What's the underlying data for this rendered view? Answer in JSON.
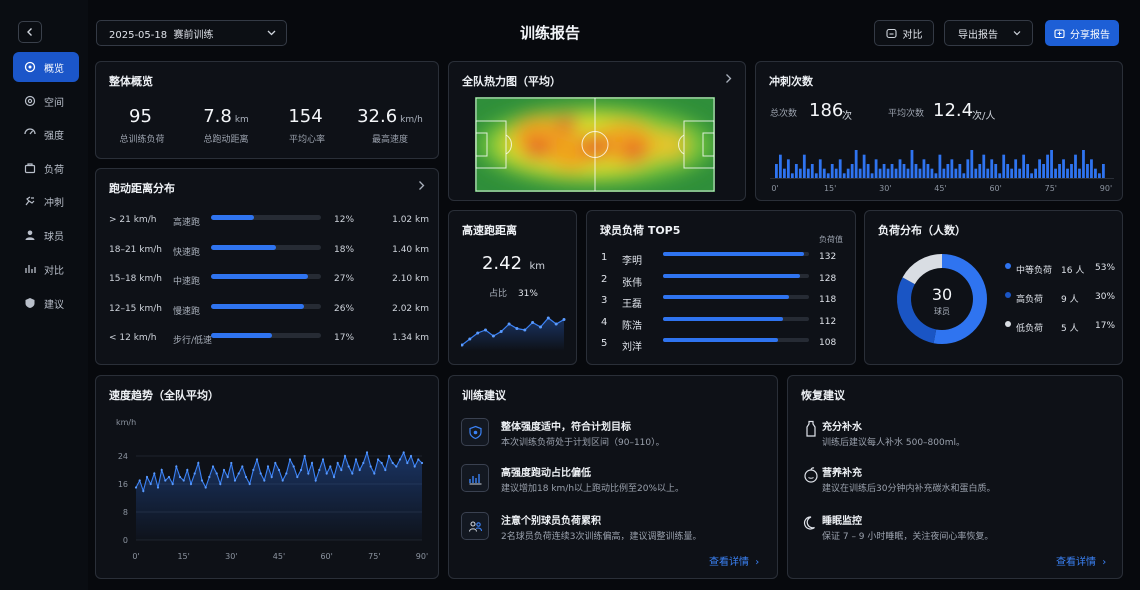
{
  "sidebar": {
    "items": [
      {
        "label": "概览",
        "icon": "overview-icon",
        "active": true
      },
      {
        "label": "空间",
        "icon": "space-icon",
        "active": false
      },
      {
        "label": "强度",
        "icon": "intensity-icon",
        "active": false
      },
      {
        "label": "负荷",
        "icon": "load-icon",
        "active": false
      },
      {
        "label": "冲刺",
        "icon": "sprint-icon",
        "active": false
      },
      {
        "label": "球员",
        "icon": "player-icon",
        "active": false
      },
      {
        "label": "对比",
        "icon": "compare-icon",
        "active": false
      },
      {
        "label": "建议",
        "icon": "suggestion-icon",
        "active": false
      }
    ]
  },
  "header": {
    "session_select": "2025-05-18  赛前训练",
    "title": "训练报告",
    "compare_label": "对比",
    "export_label": "导出报告",
    "share_label": "分享报告"
  },
  "overview": {
    "title": "整体概览",
    "stats": [
      {
        "value": "95",
        "unit": "",
        "label": "总训练负荷"
      },
      {
        "value": "7.8",
        "unit": "km",
        "label": "总跑动距离"
      },
      {
        "value": "154",
        "unit": "",
        "label": "平均心率"
      },
      {
        "value": "32.6",
        "unit": "km/h",
        "label": "最高速度"
      }
    ]
  },
  "heatmap": {
    "title": "全队热力图（平均）"
  },
  "sprint": {
    "title": "冲刺次数",
    "total_label": "总次数",
    "total_value": "186",
    "total_unit": "次",
    "avg_label": "平均次数",
    "avg_value": "12.4",
    "avg_unit": "次/人",
    "chart_data": {
      "type": "bar",
      "x_ticks": [
        "0'",
        "15'",
        "30'",
        "45'",
        "60'",
        "75'",
        "90'"
      ],
      "values": [
        3,
        5,
        2,
        4,
        1,
        3,
        2,
        5,
        2,
        3,
        1,
        4,
        2,
        1,
        3,
        2,
        4,
        1,
        2,
        3,
        6,
        2,
        5,
        3,
        1,
        4,
        2,
        3,
        2,
        3,
        2,
        4,
        3,
        2,
        6,
        3,
        2,
        4,
        3,
        2,
        1,
        5,
        2,
        3,
        4,
        2,
        3,
        1,
        4,
        6,
        2,
        3,
        5,
        2,
        4,
        3,
        1,
        5,
        3,
        2,
        4,
        2,
        5,
        3,
        1,
        2,
        4,
        3,
        5,
        6,
        2,
        3,
        4,
        2,
        3,
        5,
        2,
        6,
        3,
        4,
        2,
        1,
        3
      ]
    }
  },
  "run_distance": {
    "title": "跑动距离分布",
    "rows": [
      {
        "range": "> 21 km/h",
        "type": "高速跑",
        "percent": 12,
        "percent_label": "12%",
        "distance": "1.02 km"
      },
      {
        "range": "18–21 km/h",
        "type": "快速跑",
        "percent": 18,
        "percent_label": "18%",
        "distance": "1.40 km"
      },
      {
        "range": "15–18 km/h",
        "type": "中速跑",
        "percent": 27,
        "percent_label": "27%",
        "distance": "2.10 km"
      },
      {
        "range": "12–15 km/h",
        "type": "慢速跑",
        "percent": 26,
        "percent_label": "26%",
        "distance": "2.02 km"
      },
      {
        "range": "< 12 km/h",
        "type": "步行/低速",
        "percent": 17,
        "percent_label": "17%",
        "distance": "1.34 km"
      }
    ]
  },
  "high_speed": {
    "title": "高速跑距离",
    "value": "2.42",
    "unit": "km",
    "ratio_label": "占比",
    "ratio_value": "31%",
    "chart_data": {
      "type": "line",
      "values": [
        10,
        14,
        18,
        20,
        16,
        19,
        24,
        21,
        20,
        25,
        22,
        28,
        24,
        27
      ]
    }
  },
  "top5": {
    "title": "球员负荷 TOP5",
    "col_label": "负荷值",
    "max": 132,
    "players": [
      {
        "rank": "1",
        "name": "李明",
        "value": 132
      },
      {
        "rank": "2",
        "name": "张伟",
        "value": 128
      },
      {
        "rank": "3",
        "name": "王磊",
        "value": 118
      },
      {
        "rank": "4",
        "name": "陈浩",
        "value": 112
      },
      {
        "rank": "5",
        "name": "刘洋",
        "value": 108
      }
    ]
  },
  "load_dist": {
    "title": "负荷分布（人数）",
    "total": "30",
    "total_label": "球员",
    "chart_data": {
      "type": "pie",
      "segments": [
        {
          "label": "中等负荷",
          "count": "16 人",
          "percent_label": "53%",
          "value": 53,
          "color": "#2f74f0"
        },
        {
          "label": "高负荷",
          "count": "9 人",
          "percent_label": "30%",
          "value": 30,
          "color": "#1a55c4"
        },
        {
          "label": "低负荷",
          "count": "5 人",
          "percent_label": "17%",
          "value": 17,
          "color": "#d9dde3"
        }
      ]
    }
  },
  "speed_trend": {
    "title": "速度趋势（全队平均）",
    "chart_data": {
      "type": "area",
      "ylabel": "km/h",
      "ylim": [
        0,
        28
      ],
      "y_ticks": [
        "0",
        "8",
        "16",
        "24"
      ],
      "x_ticks": [
        "0'",
        "15'",
        "30'",
        "45'",
        "60'",
        "75'",
        "90'"
      ],
      "values": [
        15,
        17,
        14,
        18,
        16,
        19,
        15,
        20,
        17,
        18,
        16,
        21,
        18,
        17,
        20,
        16,
        19,
        22,
        17,
        15,
        18,
        21,
        19,
        16,
        20,
        18,
        22,
        17,
        19,
        21,
        18,
        16,
        20,
        23,
        19,
        17,
        21,
        18,
        22,
        20,
        17,
        19,
        23,
        21,
        18,
        20,
        24,
        19,
        22,
        17,
        20,
        23,
        19,
        21,
        18,
        22,
        20,
        24,
        21,
        19,
        23,
        20,
        22,
        25,
        21,
        19,
        23,
        22,
        20,
        24,
        22,
        21,
        23,
        25,
        22,
        24,
        21,
        23,
        22
      ]
    }
  },
  "training_advice": {
    "title": "训练建议",
    "items": [
      {
        "title": "整体强度适中，符合计划目标",
        "desc": "本次训练负荷处于计划区间（90–110）。"
      },
      {
        "title": "高强度跑动占比偏低",
        "desc": "建议增加18 km/h以上跑动比例至20%以上。"
      },
      {
        "title": "注意个别球员负荷累积",
        "desc": "2名球员负荷连续3次训练偏高，建议调整训练量。"
      }
    ],
    "more_label": "查看详情"
  },
  "recovery_advice": {
    "title": "恢复建议",
    "items": [
      {
        "title": "充分补水",
        "desc": "训练后建议每人补水 500–800ml。"
      },
      {
        "title": "营养补充",
        "desc": "建议在训练后30分钟内补充碳水和蛋白质。"
      },
      {
        "title": "睡眠监控",
        "desc": "保证 7 – 9 小时睡眠，关注夜间心率恢复。"
      }
    ],
    "more_label": "查看详情"
  }
}
